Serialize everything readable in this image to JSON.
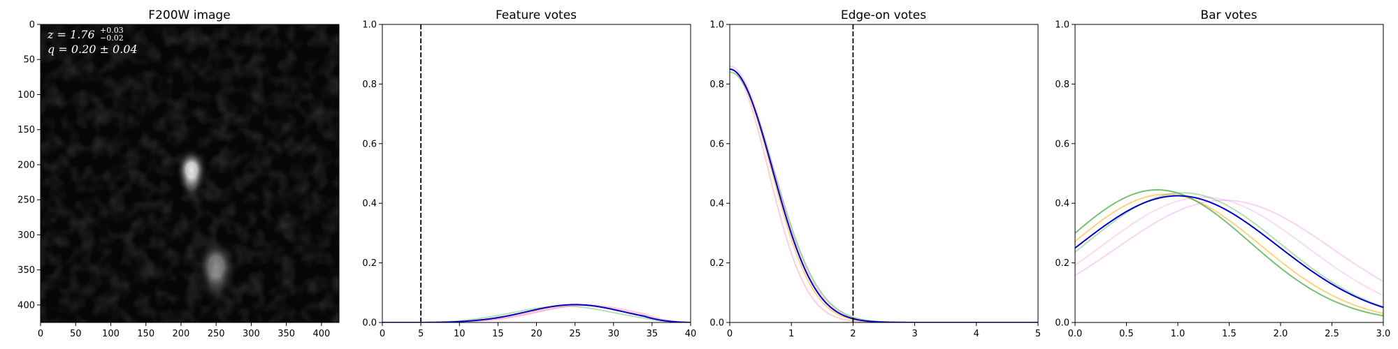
{
  "chart_data": [
    {
      "type": "image",
      "title": "F200W image",
      "xlim": [
        0,
        425
      ],
      "ylim": [
        425,
        0
      ],
      "x_ticks": [
        "0",
        "50",
        "100",
        "150",
        "200",
        "250",
        "300",
        "350",
        "400"
      ],
      "y_ticks": [
        "0",
        "50",
        "100",
        "150",
        "200",
        "250",
        "300",
        "350",
        "400"
      ],
      "sources": [
        {
          "x": 215,
          "y": 208,
          "brightness": 1.0
        },
        {
          "x": 250,
          "y": 345,
          "brightness": 0.55
        }
      ],
      "annotations": {
        "z_label": "z = 1.76",
        "z_sup": "+0.03",
        "z_sub": "−0.02",
        "q_label": "q = 0.20 ± 0.04"
      }
    },
    {
      "type": "line",
      "title": "Feature votes",
      "xlim": [
        0,
        40
      ],
      "ylim": [
        0,
        1.0
      ],
      "x_ticks": [
        "0",
        "5",
        "10",
        "15",
        "20",
        "25",
        "30",
        "35",
        "40"
      ],
      "y_ticks": [
        "0.0",
        "0.2",
        "0.4",
        "0.6",
        "0.8",
        "1.0"
      ],
      "vline": 5,
      "series": [
        {
          "color": "#2ca02c",
          "alpha": 0.35,
          "peak": 0.055,
          "mean": 23.5,
          "sd": 6.5
        },
        {
          "color": "#ff9db0",
          "alpha": 0.55,
          "peak": 0.058,
          "mean": 26.5,
          "sd": 6.3
        },
        {
          "color": "#ee82ee",
          "alpha": 0.4,
          "peak": 0.057,
          "mean": 25.8,
          "sd": 6.2
        },
        {
          "color": "#ffa500",
          "alpha": 0.45,
          "peak": 0.059,
          "mean": 25.2,
          "sd": 6.2
        },
        {
          "color": "#0000cd",
          "alpha": 1.0,
          "peak": 0.06,
          "mean": 25.0,
          "sd": 6.2
        }
      ]
    },
    {
      "type": "line",
      "title": "Edge-on votes",
      "xlim": [
        0,
        5
      ],
      "ylim": [
        0,
        1.0
      ],
      "x_ticks": [
        "0",
        "1",
        "2",
        "3",
        "4",
        "5"
      ],
      "y_ticks": [
        "0.0",
        "0.2",
        "0.4",
        "0.6",
        "0.8",
        "1.0"
      ],
      "vline": 2,
      "series": [
        {
          "color": "#ff9db0",
          "alpha": 0.5,
          "peak": 0.85,
          "mean": 0,
          "sd": 0.62
        },
        {
          "color": "#ffa500",
          "alpha": 0.5,
          "peak": 0.85,
          "mean": 0,
          "sd": 0.67
        },
        {
          "color": "#2ca02c",
          "alpha": 0.45,
          "peak": 0.84,
          "mean": 0,
          "sd": 0.72
        },
        {
          "color": "#ee82ee",
          "alpha": 0.35,
          "peak": 0.86,
          "mean": 0,
          "sd": 0.7
        },
        {
          "color": "#0000cd",
          "alpha": 1.0,
          "peak": 0.85,
          "mean": 0,
          "sd": 0.69
        }
      ]
    },
    {
      "type": "line",
      "title": "Bar votes",
      "xlim": [
        0,
        3.0
      ],
      "ylim": [
        0,
        1.0
      ],
      "x_ticks": [
        "0.0",
        "0.5",
        "1.0",
        "1.5",
        "2.0",
        "2.5",
        "3.0"
      ],
      "y_ticks": [
        "0.0",
        "0.2",
        "0.4",
        "0.6",
        "0.8",
        "1.0"
      ],
      "series": [
        {
          "color": "#ee82ee",
          "alpha": 0.35,
          "peak": 0.41,
          "mean": 1.45,
          "sd": 1.05
        },
        {
          "color": "#ee82ee",
          "alpha": 0.3,
          "peak": 0.42,
          "mean": 1.25,
          "sd": 1.0
        },
        {
          "color": "#ffa500",
          "alpha": 0.5,
          "peak": 0.43,
          "mean": 0.88,
          "sd": 0.92
        },
        {
          "color": "#2ca02c",
          "alpha": 0.35,
          "peak": 0.435,
          "mean": 1.05,
          "sd": 0.95
        },
        {
          "color": "#2ca02c",
          "alpha": 0.65,
          "peak": 0.445,
          "mean": 0.8,
          "sd": 0.9
        },
        {
          "color": "#0000cd",
          "alpha": 1.0,
          "peak": 0.425,
          "mean": 1.0,
          "sd": 0.97
        }
      ]
    }
  ]
}
